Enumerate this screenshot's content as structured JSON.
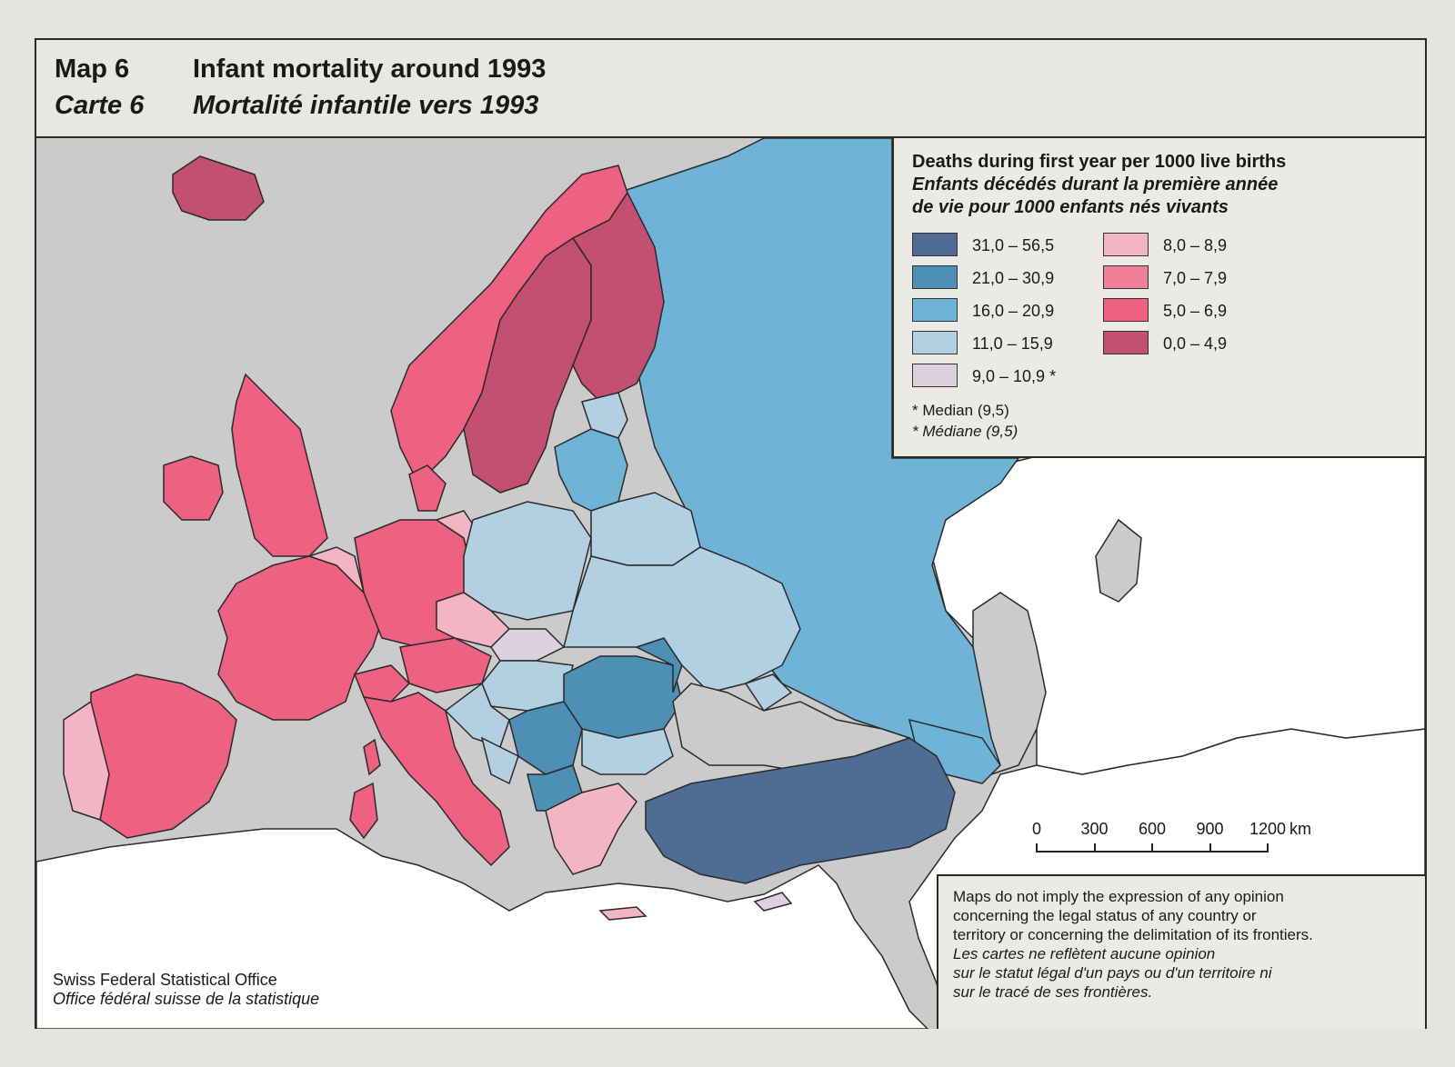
{
  "header": {
    "map_number_en": "Map 6",
    "title_en": "Infant mortality around 1993",
    "map_number_fr": "Carte 6",
    "title_fr": "Mortalité infantile vers 1993"
  },
  "legend": {
    "title_en": "Deaths during first year per 1000 live births",
    "title_fr_line1": "Enfants décédés durant la première année",
    "title_fr_line2": "de vie pour 1000 enfants nés vivants",
    "classes": [
      {
        "label": "31,0 – 56,5",
        "color": "#4f6d92"
      },
      {
        "label": "21,0 – 30,9",
        "color": "#4d8fb5"
      },
      {
        "label": "16,0 – 20,9",
        "color": "#6fb4d6"
      },
      {
        "label": "11,0 – 15,9",
        "color": "#b3d0e2"
      },
      {
        "label": "9,0 – 10,9 *",
        "color": "#ddd0e0"
      },
      {
        "label": "8,0 – 8,9",
        "color": "#f3b5c6"
      },
      {
        "label": "7,0 – 7,9",
        "color": "#f07f98"
      },
      {
        "label": "5,0 – 6,9",
        "color": "#ee6180"
      },
      {
        "label": "0,0 – 4,9",
        "color": "#c34f72"
      }
    ],
    "median_en": "* Median (9,5)",
    "median_fr": "* Médiane (9,5)"
  },
  "scale_bar": {
    "ticks": [
      "0",
      "300",
      "600",
      "900",
      "1200"
    ],
    "unit": "km"
  },
  "disclaimer": {
    "en_line1": "Maps do not imply the expression of any opinion",
    "en_line2": "concerning the legal status of any country or",
    "en_line3": "territory or concerning the delimitation of its frontiers.",
    "fr_line1": "Les cartes ne reflètent aucune opinion",
    "fr_line2": "sur le statut légal d'un pays ou d'un territoire ni",
    "fr_line3": "sur le tracé de ses frontières."
  },
  "source": {
    "en": "Swiss Federal Statistical Office",
    "fr": "Office fédéral suisse de la statistique"
  },
  "map_colors": {
    "no_data": "#cbcbcb",
    "outside": "#ffffff",
    "border": "#2a2a2a"
  }
}
